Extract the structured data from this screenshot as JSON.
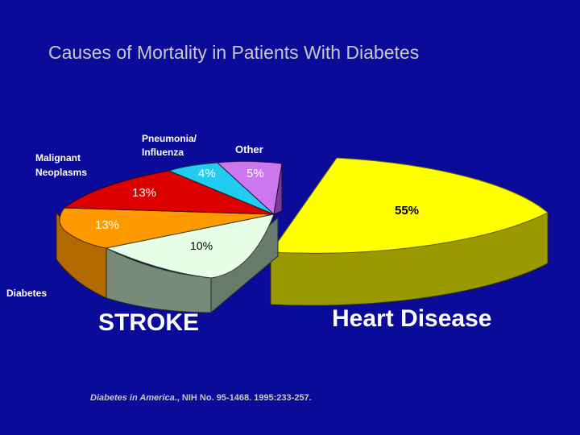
{
  "slide": {
    "background": "#0b0b9a",
    "title": "Causes of Mortality in Patients With Diabetes",
    "citation_italic": "Diabetes in America",
    "citation_rest": "., NIH No. 95-1468. 1995:233-257."
  },
  "chart_data": {
    "type": "pie",
    "title": "Causes of Mortality in Patients With Diabetes",
    "style": "3d-exploded",
    "slices": [
      {
        "label": "Heart Disease",
        "value": 55,
        "value_label": "55%",
        "color": "#ffff00"
      },
      {
        "label": "Other",
        "value": 5,
        "value_label": "5%",
        "color": "#cc77ee"
      },
      {
        "label": "Pneumonia/ Influenza",
        "value": 4,
        "value_label": "4%",
        "color": "#22ccf0"
      },
      {
        "label": "Malignant Neoplasms",
        "value": 13,
        "value_label": "13%",
        "color": "#dd0000"
      },
      {
        "label": "Diabetes",
        "value": 13,
        "value_label": "13%",
        "color": "#ff9900"
      },
      {
        "label": "STROKE",
        "value": 10,
        "value_label": "10%",
        "color": "#e6ffe6"
      }
    ]
  },
  "labels": {
    "heart": "Heart Disease",
    "stroke": "STROKE",
    "diabetes": "Diabetes",
    "malignant_line1": "Malignant",
    "malignant_line2": "Neoplasms",
    "pneumonia_line1": "Pneumonia/",
    "pneumonia_line2": "Influenza",
    "other": "Other",
    "pct_heart": "55%",
    "pct_other": "5%",
    "pct_pneumonia": "4%",
    "pct_malignant": "13%",
    "pct_diabetes": "13%",
    "pct_stroke": "10%"
  }
}
